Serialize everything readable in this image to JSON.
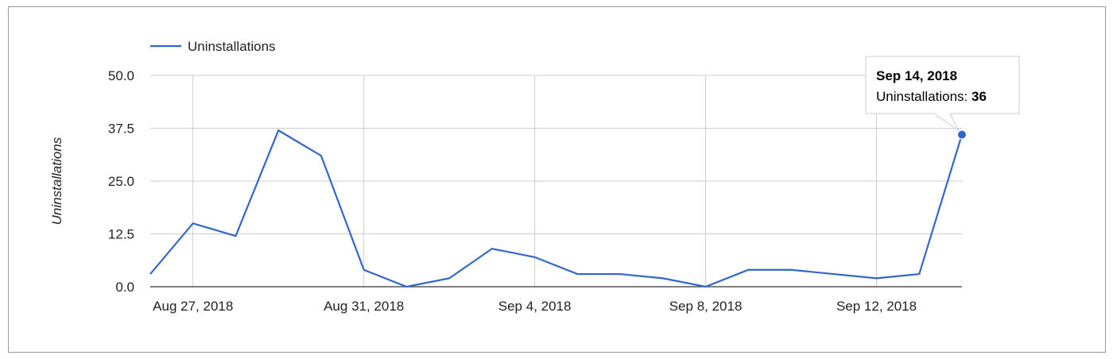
{
  "chart_data": {
    "type": "line",
    "title": "",
    "xlabel": "",
    "ylabel": "Uninstallations",
    "legend": {
      "position": "top-left",
      "entries": [
        "Uninstallations"
      ]
    },
    "colors": {
      "series": "#3366cc",
      "grid": "#cccccc",
      "axis": "#333333"
    },
    "grid": true,
    "ylim": [
      0,
      50
    ],
    "yticks": [
      "0.0",
      "12.5",
      "25.0",
      "37.5",
      "50.0"
    ],
    "xticks": [
      "Aug 27, 2018",
      "Aug 31, 2018",
      "Sep 4, 2018",
      "Sep 8, 2018",
      "Sep 12, 2018"
    ],
    "series": [
      {
        "name": "Uninstallations",
        "x": [
          "Aug 26, 2018",
          "Aug 27, 2018",
          "Aug 28, 2018",
          "Aug 29, 2018",
          "Aug 30, 2018",
          "Aug 31, 2018",
          "Sep 1, 2018",
          "Sep 2, 2018",
          "Sep 3, 2018",
          "Sep 4, 2018",
          "Sep 5, 2018",
          "Sep 6, 2018",
          "Sep 7, 2018",
          "Sep 8, 2018",
          "Sep 9, 2018",
          "Sep 10, 2018",
          "Sep 11, 2018",
          "Sep 12, 2018",
          "Sep 13, 2018",
          "Sep 14, 2018"
        ],
        "values": [
          3,
          15,
          12,
          37,
          31,
          4,
          0,
          2,
          9,
          7,
          3,
          3,
          2,
          0,
          4,
          4,
          3,
          2,
          3,
          36
        ]
      }
    ],
    "tooltip": {
      "title": "Sep 14, 2018",
      "label": "Uninstallations: ",
      "value": "36"
    }
  }
}
